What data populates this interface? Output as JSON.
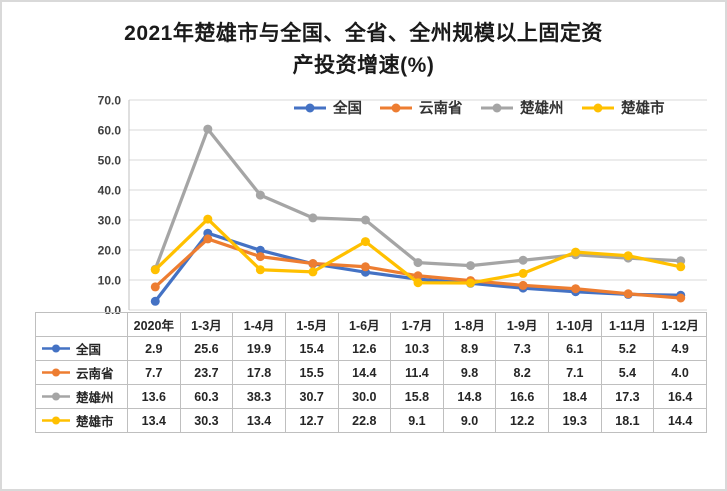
{
  "title": "2021年楚雄市与全国、全省、全州规模以上固定资产投资增速(%)",
  "chart_data": {
    "type": "line",
    "title": "2021年楚雄市与全国、全省、全州规模以上固定资产投资增速(%)",
    "categories": [
      "2020年",
      "1-3月",
      "1-4月",
      "1-5月",
      "1-6月",
      "1-7月",
      "1-8月",
      "1-9月",
      "1-10月",
      "1-11月",
      "1-12月"
    ],
    "series": [
      {
        "name": "全国",
        "color": "#4472C4",
        "values": [
          2.9,
          25.6,
          19.9,
          15.4,
          12.6,
          10.3,
          8.9,
          7.3,
          6.1,
          5.2,
          4.9
        ]
      },
      {
        "name": "云南省",
        "color": "#ED7D31",
        "values": [
          7.7,
          23.7,
          17.8,
          15.5,
          14.4,
          11.4,
          9.8,
          8.2,
          7.1,
          5.4,
          4.0
        ]
      },
      {
        "name": "楚雄州",
        "color": "#A5A5A5",
        "values": [
          13.6,
          60.3,
          38.3,
          30.7,
          30.0,
          15.8,
          14.8,
          16.6,
          18.4,
          17.3,
          16.4
        ]
      },
      {
        "name": "楚雄市",
        "color": "#FFC000",
        "values": [
          13.4,
          30.3,
          13.4,
          12.7,
          22.8,
          9.1,
          9.0,
          12.2,
          19.3,
          18.1,
          14.4
        ]
      }
    ],
    "ylim": [
      0,
      70
    ],
    "ytick_step": 10,
    "ytick_labels": [
      "0.0",
      "10.0",
      "20.0",
      "30.0",
      "40.0",
      "50.0",
      "60.0",
      "70.0"
    ],
    "grid": true,
    "legend_position": "top-inside",
    "data_table_shown": true,
    "value_decimals": 1,
    "colors": {
      "grid": "#d9d9d9",
      "axis": "#bfbfbf",
      "tick_text": "#404040",
      "table_border": "#bfbfbf",
      "frame_border": "#d9d9d9"
    }
  }
}
